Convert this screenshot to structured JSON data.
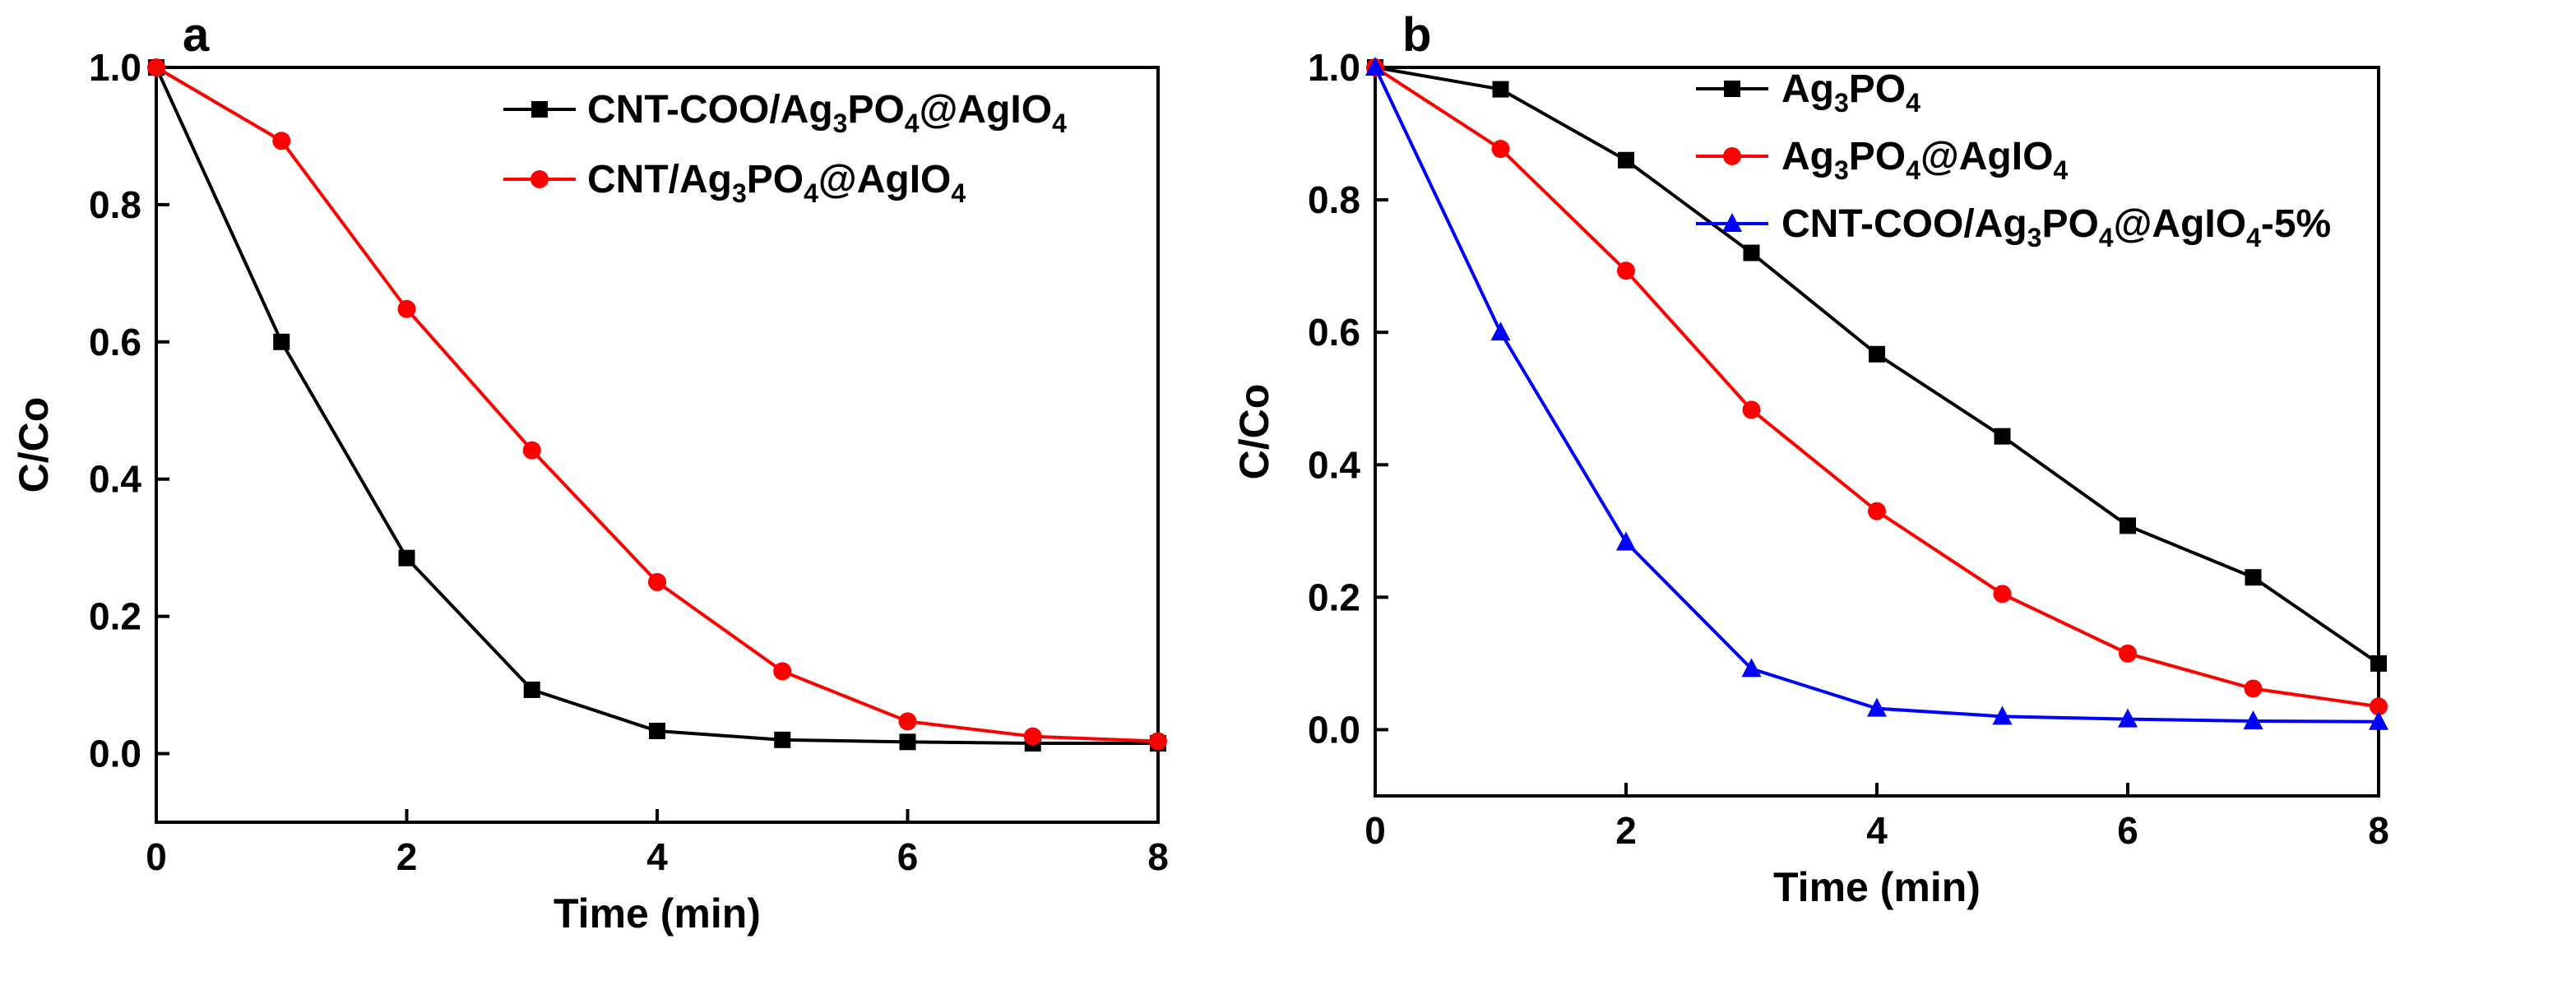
{
  "chart_data": [
    {
      "panel": "a",
      "type": "line",
      "xlabel": "Time (min)",
      "ylabel": "C/Co",
      "xlim": [
        0,
        8
      ],
      "ylim": [
        -0.1,
        1.0
      ],
      "xticks": [
        0,
        2,
        4,
        6,
        8
      ],
      "yticks": [
        0.0,
        0.2,
        0.4,
        0.6,
        0.8,
        1.0
      ],
      "grid": false,
      "legend_position": "top-right",
      "x": [
        0,
        1,
        2,
        3,
        4,
        5,
        6,
        7,
        8
      ],
      "series": [
        {
          "name": "CNT-COO/Ag3PO4@AgIO4",
          "legend_parts": [
            [
              "CNT-COO/Ag",
              ""
            ],
            [
              "3",
              "sub"
            ],
            [
              "PO",
              ""
            ],
            [
              "4",
              "sub"
            ],
            [
              "@AgIO",
              ""
            ],
            [
              "4",
              "sub"
            ]
          ],
          "color": "#000000",
          "marker": "square",
          "values": [
            1.0,
            0.6,
            0.285,
            0.093,
            0.033,
            0.02,
            0.017,
            0.015,
            0.015
          ]
        },
        {
          "name": "CNT/Ag3PO4@AgIO4",
          "legend_parts": [
            [
              "CNT/Ag",
              ""
            ],
            [
              "3",
              "sub"
            ],
            [
              "PO",
              ""
            ],
            [
              "4",
              "sub"
            ],
            [
              "@AgIO",
              ""
            ],
            [
              "4",
              "sub"
            ]
          ],
          "color": "#ff0000",
          "marker": "circle",
          "values": [
            1.0,
            0.893,
            0.648,
            0.442,
            0.25,
            0.12,
            0.047,
            0.025,
            0.018
          ]
        }
      ]
    },
    {
      "panel": "b",
      "type": "line",
      "xlabel": "Time (min)",
      "ylabel": "C/Co",
      "xlim": [
        0,
        8
      ],
      "ylim": [
        -0.1,
        1.0
      ],
      "xticks": [
        0,
        2,
        4,
        6,
        8
      ],
      "yticks": [
        0.0,
        0.2,
        0.4,
        0.6,
        0.8,
        1.0
      ],
      "grid": false,
      "legend_position": "top-right",
      "x": [
        0,
        1,
        2,
        3,
        4,
        5,
        6,
        7,
        8
      ],
      "series": [
        {
          "name": "Ag3PO4",
          "legend_parts": [
            [
              "Ag",
              ""
            ],
            [
              "3",
              "sub"
            ],
            [
              "PO",
              ""
            ],
            [
              "4",
              "sub"
            ]
          ],
          "color": "#000000",
          "marker": "square",
          "values": [
            1.0,
            0.967,
            0.86,
            0.72,
            0.567,
            0.443,
            0.308,
            0.23,
            0.1
          ]
        },
        {
          "name": "Ag3PO4@AgIO4",
          "legend_parts": [
            [
              "Ag",
              ""
            ],
            [
              "3",
              "sub"
            ],
            [
              "PO",
              ""
            ],
            [
              "4",
              "sub"
            ],
            [
              "@AgIO",
              ""
            ],
            [
              "4",
              "sub"
            ]
          ],
          "color": "#ff0000",
          "marker": "circle",
          "values": [
            1.0,
            0.877,
            0.693,
            0.483,
            0.33,
            0.205,
            0.115,
            0.062,
            0.035
          ]
        },
        {
          "name": "CNT-COO/Ag3PO4@AgIO4-5%",
          "legend_parts": [
            [
              "CNT-COO/Ag",
              ""
            ],
            [
              "3",
              "sub"
            ],
            [
              "PO",
              ""
            ],
            [
              "4",
              "sub"
            ],
            [
              "@AgIO",
              ""
            ],
            [
              "4",
              "sub"
            ],
            [
              "-5%",
              ""
            ]
          ],
          "color": "#0000ff",
          "marker": "triangle",
          "values": [
            1.0,
            0.6,
            0.283,
            0.092,
            0.032,
            0.02,
            0.016,
            0.013,
            0.012
          ]
        }
      ]
    }
  ]
}
